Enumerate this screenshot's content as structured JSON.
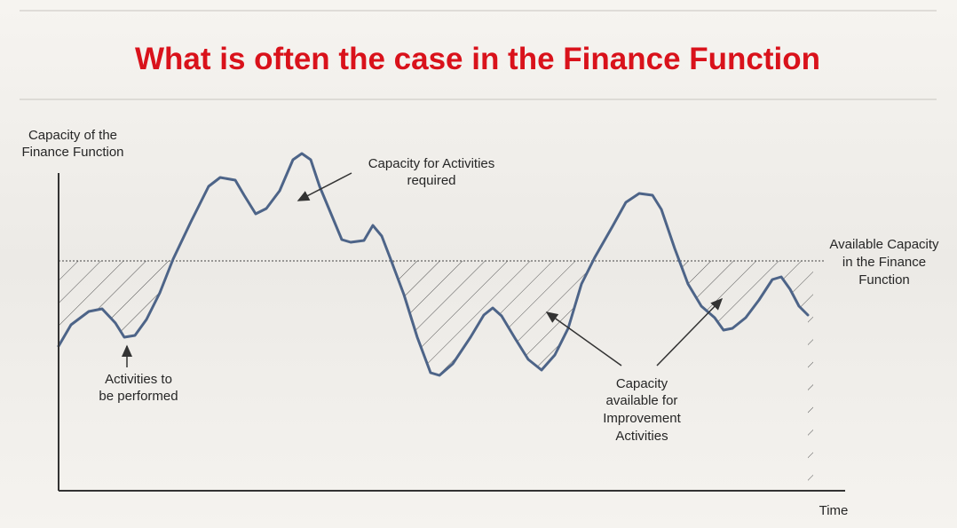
{
  "title": "What is often the case in the Finance Function",
  "y_axis_label": [
    "Capacity of the",
    "Finance Function"
  ],
  "x_axis_label": "Time",
  "annotations": {
    "required": [
      "Capacity for Activities",
      "required"
    ],
    "available": [
      "Available Capacity",
      "in the Finance",
      "Function"
    ],
    "performed": [
      "Activities to",
      "be performed"
    ],
    "improvement": [
      "Capacity",
      "available for",
      "Improvement",
      "Activities"
    ]
  }
}
